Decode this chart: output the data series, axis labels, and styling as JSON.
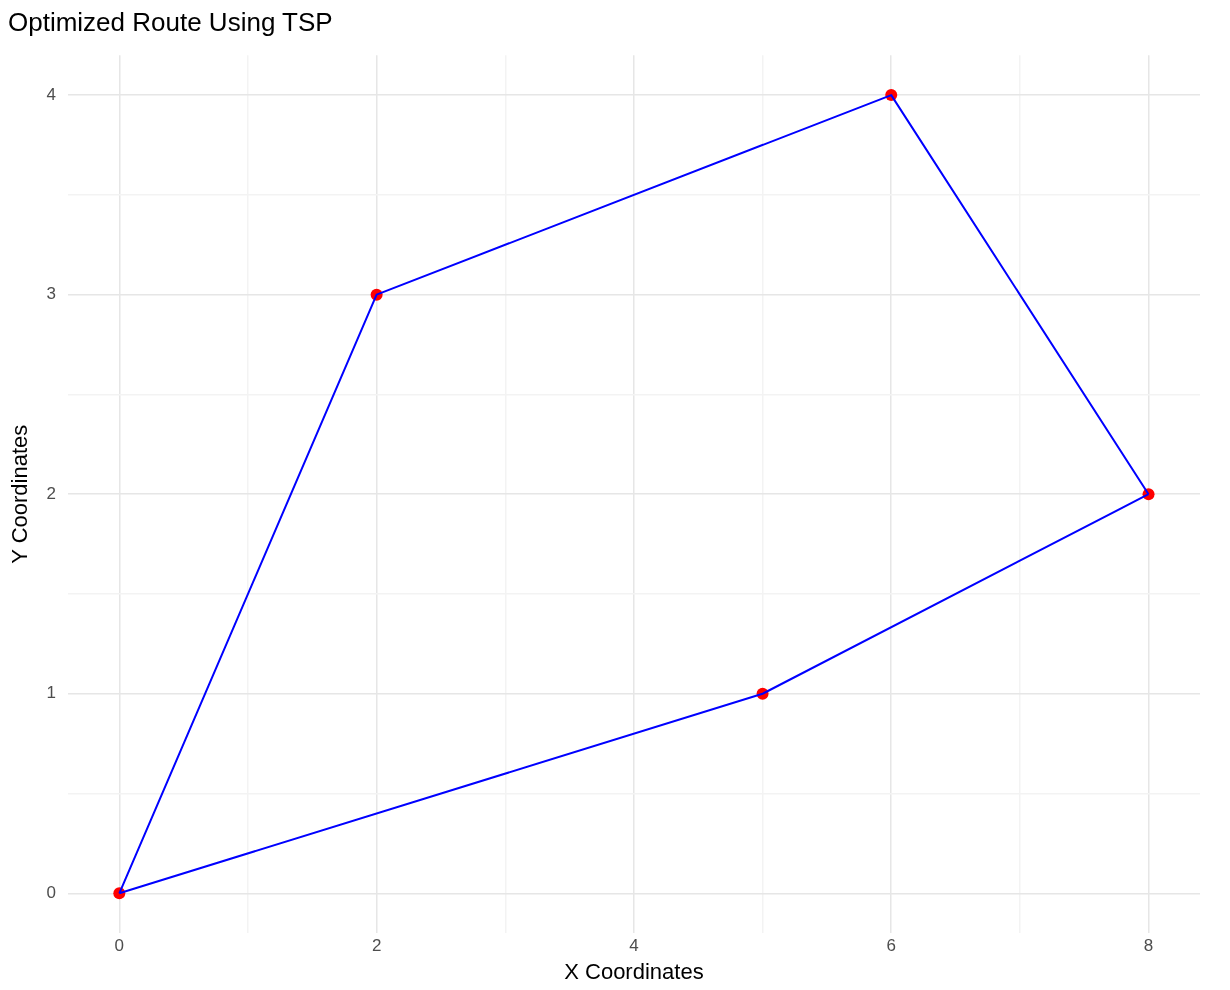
{
  "chart_data": {
    "type": "line",
    "title": "Optimized Route Using TSP",
    "xlabel": "X Coordinates",
    "ylabel": "Y Coordinates",
    "series": [
      {
        "type": "line",
        "color": "#0000ff",
        "marker": "none",
        "line_style": "solid",
        "x": [
          0,
          2,
          6,
          8
        ],
        "values": [
          0,
          3,
          4,
          2
        ]
      },
      {
        "type": "line",
        "color": "#0000ff",
        "marker": "none",
        "line_style": "solid",
        "x": [
          0,
          5,
          8
        ],
        "values": [
          0,
          1,
          2
        ]
      },
      {
        "type": "scatter",
        "color": "#ff0000",
        "marker": "circle",
        "x": [
          0,
          2,
          5,
          6,
          8
        ],
        "values": [
          0,
          3,
          1,
          4,
          2
        ]
      }
    ],
    "xlim": [
      -0.4,
      8.4
    ],
    "ylim": [
      -0.2,
      4.2
    ],
    "xticks": [
      0,
      {
        "value": 1,
        "label": null
      },
      2,
      {
        "value": 3,
        "label": null
      },
      4,
      {
        "value": 5,
        "label": null
      },
      6,
      {
        "value": 7,
        "label": null
      },
      8
    ],
    "yticks": [
      0,
      {
        "value": 0.5,
        "label": null
      },
      1,
      {
        "value": 1.5,
        "label": null
      },
      2,
      {
        "value": 2.5,
        "label": null
      },
      3,
      {
        "value": 3.5,
        "label": null
      },
      4
    ],
    "grid": true
  }
}
